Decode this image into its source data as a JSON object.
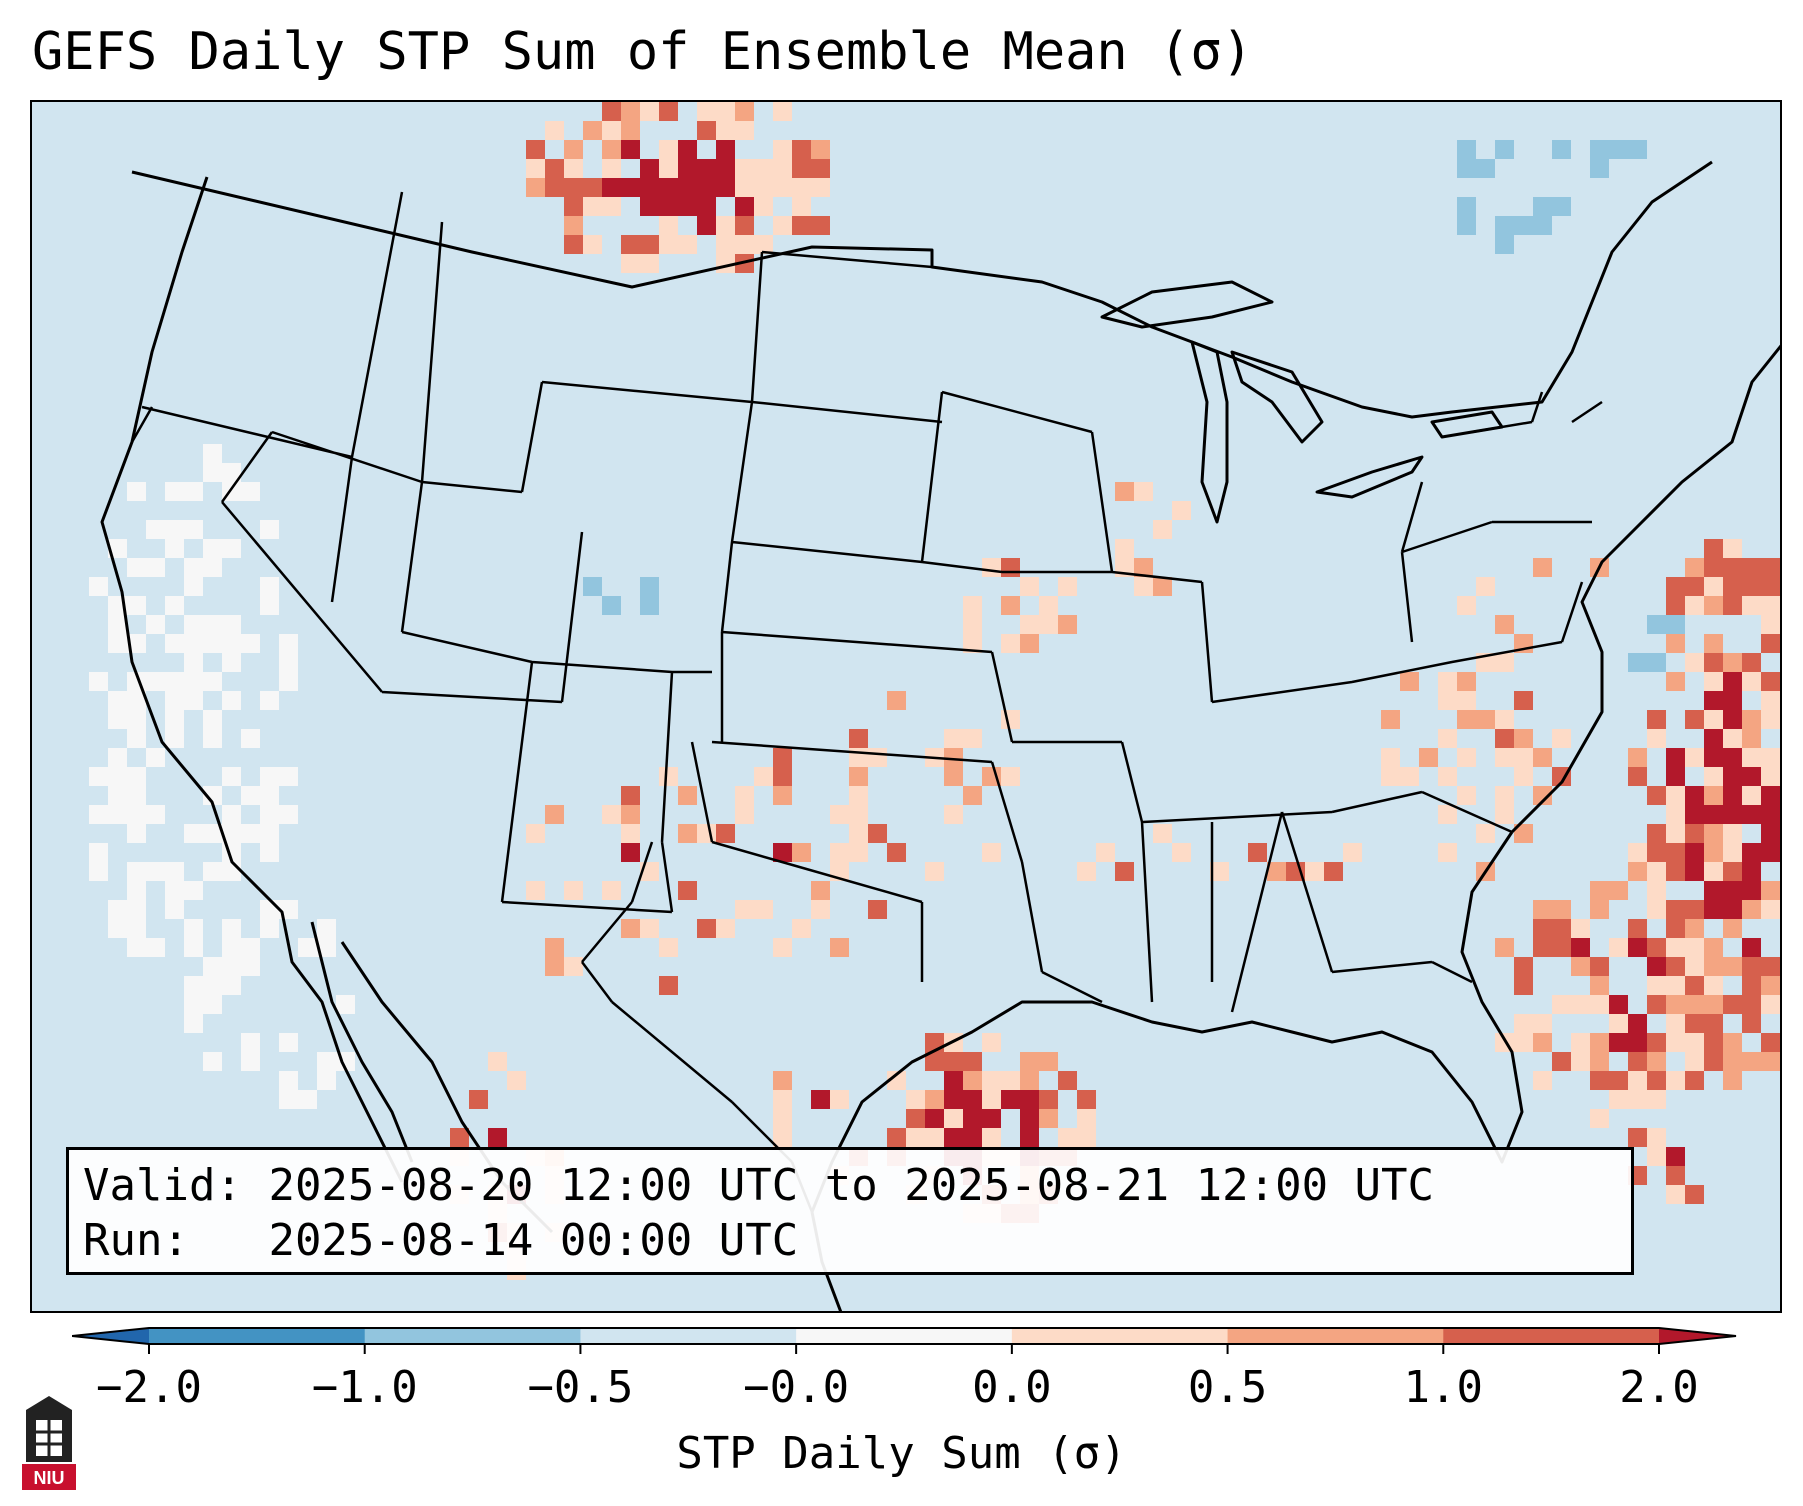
{
  "title": "GEFS Daily STP Sum of Ensemble Mean (σ)",
  "valid_box": {
    "valid_label": "Valid:",
    "valid_range": "2025-08-20 12:00 UTC to 2025-08-21 12:00 UTC",
    "run_label": "Run:",
    "run_time": "2025-08-14 00:00 UTC"
  },
  "colorbar": {
    "label": "STP Daily Sum (σ)",
    "ticks": [
      "−2.0",
      "−1.0",
      "−0.5",
      "−0.0",
      "0.0",
      "0.5",
      "1.0",
      "2.0"
    ],
    "colors": [
      "#4393c3",
      "#92c5de",
      "#d1e5f0",
      "#f7f7f7",
      "#fddbc7",
      "#f4a582",
      "#d6604d"
    ],
    "under_color": "#2166ac",
    "over_color": "#b2182b"
  },
  "map_colors": {
    "background": "#d1e5f0",
    "near_zero": "#f7f7f7",
    "light_pos": "#fddbc7",
    "mid_pos": "#f4a582",
    "high_pos": "#d6604d",
    "very_high": "#b2182b",
    "light_neg": "#92c5de",
    "lines": "#000000"
  },
  "logo_text": "NIU"
}
